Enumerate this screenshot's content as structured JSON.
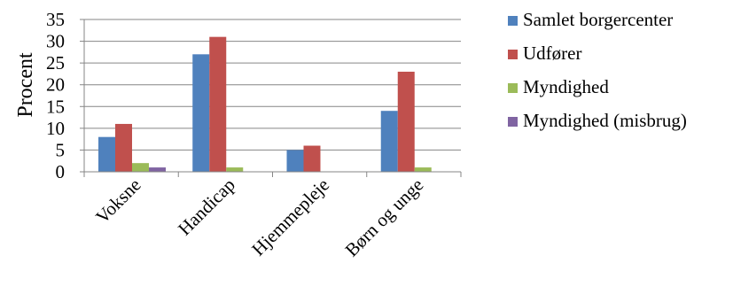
{
  "chart_data": {
    "type": "bar",
    "title": "",
    "xlabel": "",
    "ylabel": "Procent",
    "ylim": [
      0,
      35
    ],
    "yticks": [
      0,
      5,
      10,
      15,
      20,
      25,
      30,
      35
    ],
    "grid": true,
    "legend_position": "right",
    "categories": [
      "Voksne",
      "Handicap",
      "Hjemmepleje",
      "Børn og unge"
    ],
    "series": [
      {
        "name": "Samlet borgercenter",
        "color": "#4F81BD",
        "values": [
          8,
          27,
          5,
          14
        ]
      },
      {
        "name": "Udfører",
        "color": "#C0504D",
        "values": [
          11,
          31,
          6,
          23
        ]
      },
      {
        "name": "Myndighed",
        "color": "#9BBB59",
        "values": [
          2,
          1,
          0,
          1
        ]
      },
      {
        "name": "Myndighed (misbrug)",
        "color": "#8064A2",
        "values": [
          1,
          0,
          0,
          0
        ]
      }
    ]
  }
}
